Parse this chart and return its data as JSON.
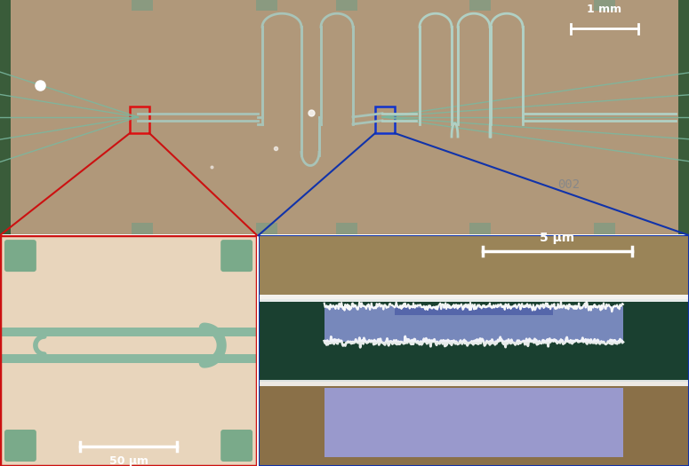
{
  "figure_width": 7.75,
  "figure_height": 5.25,
  "dpi": 100,
  "background_color": "#ffffff",
  "top_bg": "#b0987a",
  "top_green_strip": "#3a5c3a",
  "top_green_side": "#4a6a4a",
  "chip_tan": "#b0987a",
  "wg_color": "#a8c4b8",
  "wg_color2": "#c0d8cc",
  "bl_bg": "#e8d5bc",
  "bl_pad_color": "#7aaa8a",
  "bl_wg": "#8ab8a0",
  "bl_wg_inner": "#d8c8b0",
  "br_top_bg": "#a08860",
  "br_green": "#1a4030",
  "br_bot_bg": "#907050",
  "br_resonator": "#8888bb",
  "br_resonator2": "#9999cc",
  "br_beam": "#5566aa",
  "scalebar_1mm_label": "1 mm",
  "scalebar_5um_label": "5 μm",
  "scalebar_50um_label": "50 μm",
  "label_002_text": "002",
  "label_002_color": "#888888"
}
